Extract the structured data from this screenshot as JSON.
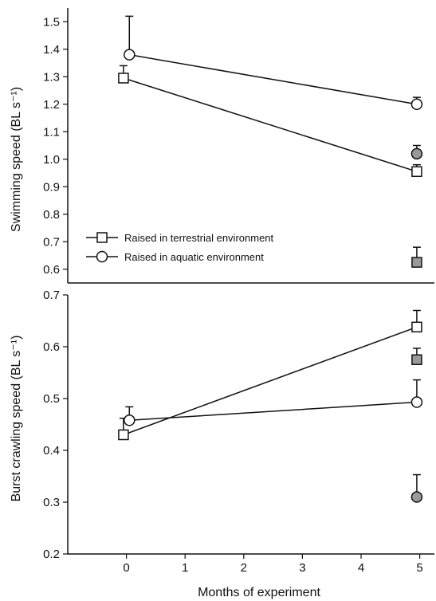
{
  "chart_data": [
    {
      "type": "line",
      "ylabel": "Swimming speed (BL s⁻¹)",
      "xlabel": "",
      "ylim": [
        0.55,
        1.55
      ],
      "xlim": [
        -1,
        5.25
      ],
      "yticks": [
        "0.6",
        "0.7",
        "0.8",
        "0.9",
        "1.0",
        "1.1",
        "1.2",
        "1.3",
        "1.4",
        "1.5"
      ],
      "legend": {
        "placement": "bottom-left",
        "entries": [
          "Raised in terrestrial environment",
          "Raised in aquatic environment"
        ]
      },
      "series": [
        {
          "name": "Raised in terrestrial environment",
          "marker": "square",
          "fill": "#ffffff",
          "x": [
            -0.05,
            4.95
          ],
          "values": [
            1.295,
            0.955
          ],
          "errors": [
            0.045,
            0.025
          ]
        },
        {
          "name": "Raised in aquatic environment",
          "marker": "circle",
          "fill": "#ffffff",
          "x": [
            0.05,
            4.95
          ],
          "values": [
            1.38,
            1.2
          ],
          "errors": [
            0.14,
            0.025
          ]
        },
        {
          "marker": "circle",
          "fill": "#999999",
          "x": [
            4.95
          ],
          "values": [
            1.02
          ],
          "errors": [
            0.03
          ]
        },
        {
          "marker": "square",
          "fill": "#999999",
          "x": [
            4.95
          ],
          "values": [
            0.625
          ],
          "errors": [
            0.055
          ]
        }
      ]
    },
    {
      "type": "line",
      "ylabel": "Burst crawling speed (BL s⁻¹)",
      "xlabel": "Months of experiment",
      "ylim": [
        0.2,
        0.7
      ],
      "xlim": [
        -1,
        5.25
      ],
      "yticks": [
        "0.2",
        "0.3",
        "0.4",
        "0.5",
        "0.6",
        "0.7"
      ],
      "xticks": [
        "0",
        "1",
        "2",
        "3",
        "4",
        "5"
      ],
      "series": [
        {
          "name": "Raised in terrestrial environment",
          "marker": "square",
          "fill": "#ffffff",
          "x": [
            -0.05,
            4.95
          ],
          "values": [
            0.43,
            0.638
          ],
          "errors": [
            0.032,
            0.032
          ]
        },
        {
          "name": "Raised in aquatic environment",
          "marker": "circle",
          "fill": "#ffffff",
          "x": [
            0.05,
            4.95
          ],
          "values": [
            0.458,
            0.493
          ],
          "errors": [
            0.026,
            0.043
          ]
        },
        {
          "marker": "square",
          "fill": "#999999",
          "x": [
            4.95
          ],
          "values": [
            0.575
          ],
          "errors": [
            0.022
          ]
        },
        {
          "marker": "circle",
          "fill": "#999999",
          "x": [
            4.95
          ],
          "values": [
            0.31
          ],
          "errors": [
            0.043
          ]
        }
      ]
    }
  ]
}
